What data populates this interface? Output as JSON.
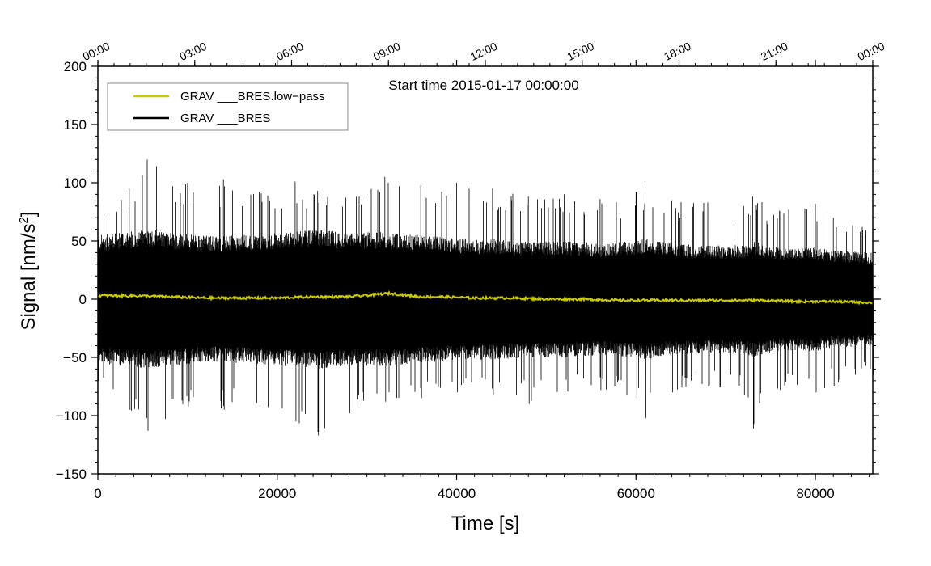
{
  "chart_data": {
    "type": "line",
    "annotation": "Start time 2015-01-17 00:00:00",
    "xlabel": "Time [s]",
    "ylabel_prefix": "Signal [nm/s",
    "ylabel_sup": "2",
    "ylabel_suffix": "]",
    "xlim": [
      0,
      86400
    ],
    "ylim": [
      -150,
      200
    ],
    "x_ticks": [
      0,
      20000,
      40000,
      60000,
      80000
    ],
    "y_ticks": [
      -150,
      -100,
      -50,
      0,
      50,
      100,
      150,
      200
    ],
    "y_tick_labels": [
      "−150",
      "−100",
      "−50",
      "0",
      "50",
      "100",
      "150",
      "200"
    ],
    "top_axis_ticks": [
      {
        "x": 0,
        "label": "00:00"
      },
      {
        "x": 10800,
        "label": "03:00"
      },
      {
        "x": 21600,
        "label": "06:00"
      },
      {
        "x": 32400,
        "label": "09:00"
      },
      {
        "x": 43200,
        "label": "12:00"
      },
      {
        "x": 54000,
        "label": "15:00"
      },
      {
        "x": 64800,
        "label": "18:00"
      },
      {
        "x": 75600,
        "label": "21:00"
      },
      {
        "x": 86400,
        "label": "00:00"
      }
    ],
    "legend_placement": "top-left",
    "series": [
      {
        "name": "GRAV ___BRES.low−pass",
        "color": "#c8c800",
        "x": [
          0,
          4000,
          8000,
          12000,
          16000,
          20000,
          24000,
          28000,
          32500,
          36000,
          38500,
          42000,
          46000,
          50000,
          54000,
          58000,
          62000,
          66000,
          70000,
          74000,
          78000,
          82000,
          86400
        ],
        "y": [
          3,
          3,
          2,
          1,
          1,
          1,
          2,
          2,
          5,
          2,
          2,
          1,
          1,
          0,
          0,
          -1,
          -1,
          -1,
          -1,
          -1,
          -2,
          -2,
          -3
        ]
      },
      {
        "name": "GRAV ___BRES",
        "color": "#000000",
        "x": [
          0,
          3500,
          5500,
          10000,
          14000,
          18000,
          22000,
          24500,
          28000,
          32000,
          36000,
          40000,
          44000,
          48000,
          52000,
          56000,
          60000,
          61000,
          64000,
          68000,
          72000,
          73000,
          76000,
          80000,
          82000,
          86400
        ],
        "envelope_upper": [
          80,
          95,
          120,
          100,
          103,
          92,
          101,
          93,
          90,
          105,
          98,
          100,
          95,
          88,
          90,
          86,
          92,
          97,
          85,
          83,
          80,
          88,
          76,
          82,
          70,
          60
        ],
        "envelope_lower": [
          -70,
          -95,
          -113,
          -92,
          -95,
          -90,
          -105,
          -117,
          -98,
          -88,
          -85,
          -80,
          -82,
          -90,
          -80,
          -78,
          -85,
          -102,
          -80,
          -75,
          -82,
          -111,
          -78,
          -80,
          -75,
          -65
        ],
        "typical_band": [
          55,
          58,
          60,
          56,
          54,
          56,
          58,
          60,
          57,
          58,
          55,
          52,
          52,
          50,
          50,
          48,
          50,
          52,
          48,
          46,
          47,
          50,
          44,
          45,
          42,
          40
        ]
      }
    ]
  }
}
